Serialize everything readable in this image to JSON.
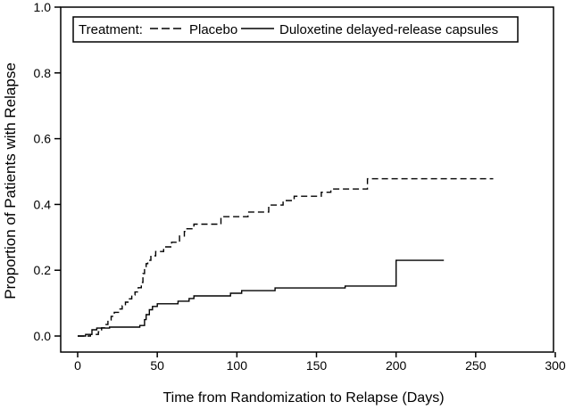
{
  "chart_data": {
    "type": "line",
    "subtype": "kaplan-meier-step",
    "title": "",
    "xlabel": "Time from Randomization to Relapse (Days)",
    "ylabel": "Proportion of Patients with Relapse",
    "xlim": [
      0,
      300
    ],
    "ylim": [
      0.0,
      1.0
    ],
    "grid": false,
    "x_ticks": [
      0,
      50,
      100,
      150,
      200,
      250,
      300
    ],
    "x_tick_labels": [
      "0",
      "50",
      "100",
      "150",
      "200",
      "250",
      "300"
    ],
    "y_ticks": [
      0.0,
      0.2,
      0.4,
      0.6,
      0.8,
      1.0
    ],
    "y_tick_labels": [
      "0.0",
      "0.2",
      "0.4",
      "0.6",
      "0.8",
      "1.0"
    ],
    "legend": {
      "title": "Treatment:",
      "position": "top-inside-box",
      "items": [
        {
          "label": "Placebo",
          "line_style": "dashed",
          "color": "#000000"
        },
        {
          "label": "Duloxetine delayed-release capsules",
          "line_style": "solid",
          "color": "#000000"
        }
      ]
    },
    "series": [
      {
        "name": "Placebo",
        "style": "dashed",
        "color": "#000000",
        "end_x": 261,
        "points": [
          [
            0,
            0
          ],
          [
            8,
            0.005
          ],
          [
            13,
            0.013
          ],
          [
            15,
            0.025
          ],
          [
            17,
            0.035
          ],
          [
            19,
            0.049
          ],
          [
            21,
            0.06
          ],
          [
            23,
            0.072
          ],
          [
            26,
            0.082
          ],
          [
            28,
            0.092
          ],
          [
            30,
            0.103
          ],
          [
            32,
            0.113
          ],
          [
            34,
            0.125
          ],
          [
            36,
            0.134
          ],
          [
            38,
            0.147
          ],
          [
            40,
            0.163
          ],
          [
            41,
            0.19
          ],
          [
            42,
            0.205
          ],
          [
            43,
            0.22
          ],
          [
            44,
            0.23
          ],
          [
            46,
            0.244
          ],
          [
            49,
            0.257
          ],
          [
            54,
            0.271
          ],
          [
            59,
            0.285
          ],
          [
            64,
            0.304
          ],
          [
            67,
            0.318
          ],
          [
            68,
            0.326
          ],
          [
            73,
            0.34
          ],
          [
            90,
            0.363
          ],
          [
            107,
            0.377
          ],
          [
            120,
            0.398
          ],
          [
            129,
            0.412
          ],
          [
            136,
            0.425
          ],
          [
            153,
            0.437
          ],
          [
            159,
            0.447
          ],
          [
            182,
            0.478
          ]
        ]
      },
      {
        "name": "Duloxetine delayed-release capsules",
        "style": "solid",
        "color": "#000000",
        "end_x": 230,
        "points": [
          [
            0,
            0
          ],
          [
            5,
            0.005
          ],
          [
            9,
            0.019
          ],
          [
            12,
            0.024
          ],
          [
            20,
            0.027
          ],
          [
            39,
            0.032
          ],
          [
            42,
            0.05
          ],
          [
            43,
            0.065
          ],
          [
            45,
            0.08
          ],
          [
            47,
            0.09
          ],
          [
            50,
            0.098
          ],
          [
            63,
            0.106
          ],
          [
            70,
            0.114
          ],
          [
            73,
            0.122
          ],
          [
            96,
            0.13
          ],
          [
            103,
            0.138
          ],
          [
            124,
            0.146
          ],
          [
            168,
            0.152
          ],
          [
            200,
            0.23
          ]
        ]
      }
    ]
  },
  "colors": {
    "background": "#ffffff",
    "line": "#000000",
    "frame": "#000000"
  }
}
